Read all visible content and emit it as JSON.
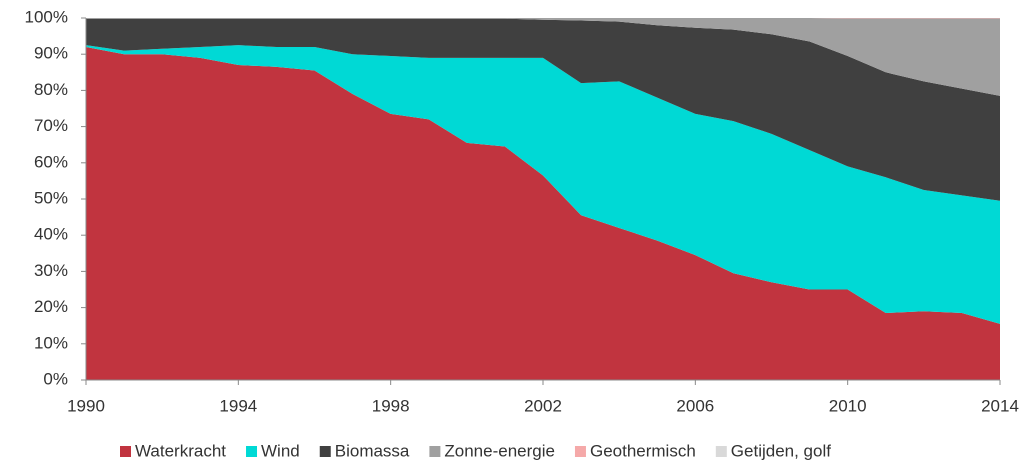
{
  "chart_data": {
    "type": "stacked_area",
    "x": [
      1990,
      1991,
      1992,
      1993,
      1994,
      1995,
      1996,
      1997,
      1998,
      1999,
      2000,
      2001,
      2002,
      2003,
      2004,
      2005,
      2006,
      2007,
      2008,
      2009,
      2010,
      2011,
      2012,
      2013,
      2014
    ],
    "series": [
      {
        "name": "Waterkracht",
        "color": "#c1343f",
        "values": [
          92,
          90,
          90,
          89,
          87,
          86.5,
          85.5,
          79,
          73.5,
          72,
          65.5,
          64.5,
          56.5,
          45.5,
          42,
          38.5,
          34.5,
          29.5,
          27,
          25,
          25,
          18.5,
          19,
          18.5,
          15.5
        ]
      },
      {
        "name": "Wind",
        "color": "#00d9d5",
        "values": [
          0.5,
          1,
          1.5,
          3,
          5.5,
          5.5,
          6.5,
          11,
          16,
          17,
          23.5,
          24.5,
          32.5,
          36.5,
          40.5,
          39.5,
          39,
          42,
          41,
          38.5,
          34,
          37.5,
          33.5,
          32.5,
          34
        ]
      },
      {
        "name": "Biomassa",
        "color": "#404040",
        "values": [
          7.3,
          8.8,
          8.3,
          7.8,
          7.3,
          7.8,
          7.8,
          9.8,
          10.3,
          10.8,
          10.8,
          10.8,
          10.5,
          17.3,
          16.5,
          20,
          23.8,
          25.3,
          27.5,
          30,
          30.5,
          29,
          30,
          29.5,
          29
        ]
      },
      {
        "name": "Zonne-energie",
        "color": "#a0a0a0",
        "values": [
          0.2,
          0.2,
          0.2,
          0.2,
          0.2,
          0.2,
          0.2,
          0.2,
          0.2,
          0.2,
          0.2,
          0.2,
          0.5,
          0.7,
          1,
          2,
          2.7,
          3.2,
          4.5,
          6.5,
          10.4,
          14.9,
          17.4,
          19.4,
          21.4
        ]
      },
      {
        "name": "Geothermisch",
        "color": "#f5a9a9",
        "values": [
          0,
          0,
          0,
          0,
          0,
          0,
          0,
          0,
          0,
          0,
          0,
          0,
          0,
          0,
          0,
          0,
          0,
          0,
          0,
          0,
          0.1,
          0.1,
          0.1,
          0.1,
          0.1
        ]
      },
      {
        "name": "Getijden, golf",
        "color": "#d9d9d9",
        "values": [
          0,
          0,
          0,
          0,
          0,
          0,
          0,
          0,
          0,
          0,
          0,
          0,
          0,
          0,
          0,
          0,
          0,
          0,
          0,
          0,
          0,
          0,
          0,
          0,
          0
        ]
      }
    ],
    "xlim": [
      1990,
      2014
    ],
    "xticks": [
      1990,
      1994,
      1998,
      2002,
      2006,
      2010,
      2014
    ],
    "ylim": [
      0,
      100
    ],
    "yticks": [
      {
        "value": 0,
        "label": "0%"
      },
      {
        "value": 10,
        "label": "10%"
      },
      {
        "value": 20,
        "label": "20%"
      },
      {
        "value": 30,
        "label": "30%"
      },
      {
        "value": 40,
        "label": "40%"
      },
      {
        "value": 50,
        "label": "50%"
      },
      {
        "value": 60,
        "label": "60%"
      },
      {
        "value": 70,
        "label": "70%"
      },
      {
        "value": 80,
        "label": "80%"
      },
      {
        "value": 90,
        "label": "90%"
      },
      {
        "value": 100,
        "label": "100%"
      }
    ],
    "grid": false,
    "legend": "bottom"
  }
}
